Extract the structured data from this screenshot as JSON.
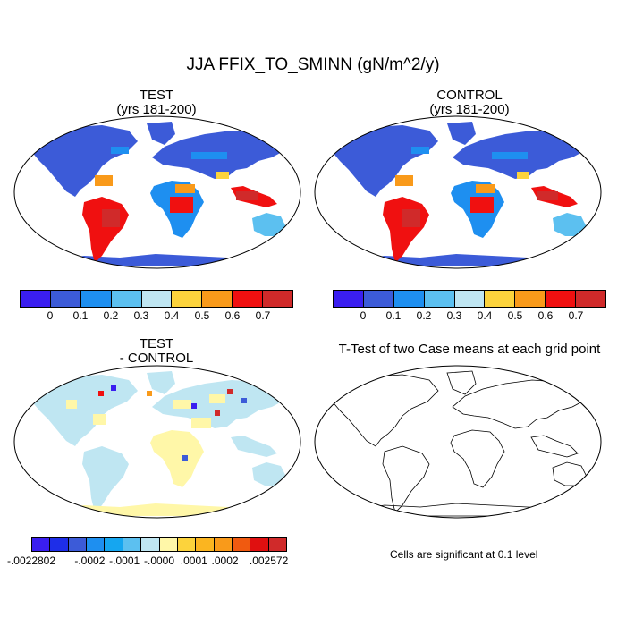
{
  "figure": {
    "title": "JJA FFIX_TO_SMINN (gN/m^2/y)",
    "note": "Cells are significant at 0.1 level"
  },
  "panels": {
    "test": {
      "title_line1": "TEST",
      "title_line2": "(yrs 181-200)"
    },
    "control": {
      "title_line1": "CONTROL",
      "title_line2": "(yrs 181-200)"
    },
    "diff": {
      "title_line1": "TEST",
      "title_line2": "- CONTROL"
    },
    "ttest": {
      "title_line1": "T-Test of two Case means at each grid point"
    }
  },
  "colorbars": {
    "main": {
      "colors": [
        "#3a1ef0",
        "#3c5bd8",
        "#1e8ff0",
        "#5cc0f0",
        "#bfe6f2",
        "#fcd33c",
        "#f99a1a",
        "#f01010",
        "#d02a2a"
      ],
      "labels": [
        "0",
        "0.1",
        "0.2",
        "0.3",
        "0.4",
        "0.5",
        "0.6",
        "0.7"
      ]
    },
    "diff": {
      "colors": [
        "#3a1ef0",
        "#1e2ee8",
        "#3c5bd8",
        "#1e8ff0",
        "#15a6f0",
        "#5cc0f0",
        "#bfe6f2",
        "#fff7a8",
        "#fcd33c",
        "#fbb520",
        "#f99a1a",
        "#f05a10",
        "#e01010",
        "#d02a2a"
      ],
      "labels": [
        "-.0022802",
        "-.0002",
        "-.0001",
        "-.0000",
        ".0001",
        ".0002",
        ".002572"
      ]
    }
  },
  "chart_data": {
    "type": "map",
    "variable": "FFIX_TO_SMINN",
    "season": "JJA",
    "units": "gN/m^2/y",
    "projection": "Robinson",
    "main_levels": [
      0,
      0.1,
      0.2,
      0.3,
      0.4,
      0.5,
      0.6,
      0.7
    ],
    "diff_levels": [
      -0.0022802,
      -0.0002,
      -0.0001,
      -0.0,
      0.0001,
      0.0002,
      0.002572
    ],
    "significance_level": 0.1
  }
}
